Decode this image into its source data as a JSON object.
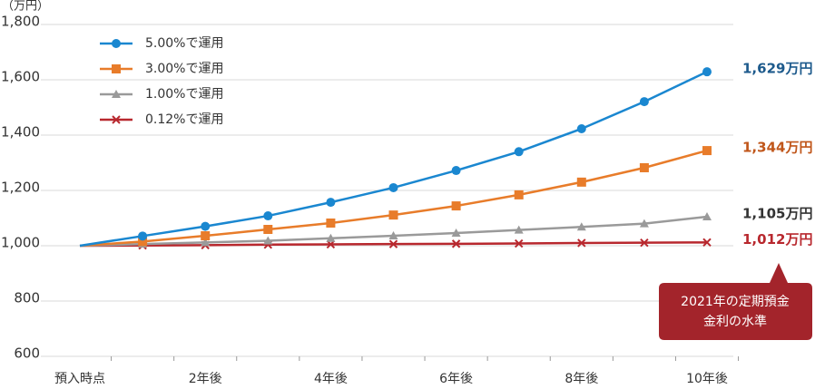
{
  "chart_data": {
    "type": "line",
    "y_unit": "（万円）",
    "categories": [
      "預入時点",
      null,
      "2年後",
      null,
      "4年後",
      null,
      "6年後",
      null,
      "8年後",
      null,
      "10年後"
    ],
    "series": [
      {
        "name": "5.00%で運用",
        "color": "#1a87d0",
        "marker": "circle",
        "label_color": "#1d5a8c",
        "values": [
          1000,
          1035,
          1070,
          1108,
          1157,
          1210,
          1272,
          1340,
          1423,
          1521,
          1629
        ],
        "end_label": "1,629万円"
      },
      {
        "name": "3.00%で運用",
        "color": "#e87c2a",
        "marker": "square",
        "label_color": "#c0561a",
        "values": [
          1000,
          1015,
          1036,
          1059,
          1082,
          1111,
          1144,
          1184,
          1230,
          1282,
          1344
        ],
        "end_label": "1,344万円"
      },
      {
        "name": "1.00%で運用",
        "color": "#9a9a9a",
        "marker": "triangle",
        "label_color": "#333333",
        "values": [
          1000,
          1006,
          1012,
          1018,
          1027,
          1036,
          1046,
          1057,
          1068,
          1080,
          1105
        ],
        "end_label": "1,105万円"
      },
      {
        "name": "0.12%で運用",
        "color": "#b8282e",
        "marker": "x",
        "label_color": "#b8282e",
        "values": [
          1000,
          1001,
          1002,
          1004,
          1005,
          1006,
          1007,
          1008,
          1010,
          1011,
          1012
        ],
        "end_label": "1,012万円"
      }
    ],
    "ylim": [
      600,
      1800
    ],
    "yticks": [
      600,
      800,
      {
        "value": 1000,
        "label": "1,000"
      },
      {
        "value": 1200,
        "label": "1,200"
      },
      {
        "value": 1400,
        "label": "1,400"
      },
      {
        "value": 1600,
        "label": "1,600"
      },
      {
        "value": 1800,
        "label": "1,800"
      }
    ],
    "grid": true,
    "legend": "top-left",
    "annotation": {
      "lines": [
        "2021年の定期預金",
        "金利の水準"
      ],
      "color": "#a3242b"
    }
  }
}
